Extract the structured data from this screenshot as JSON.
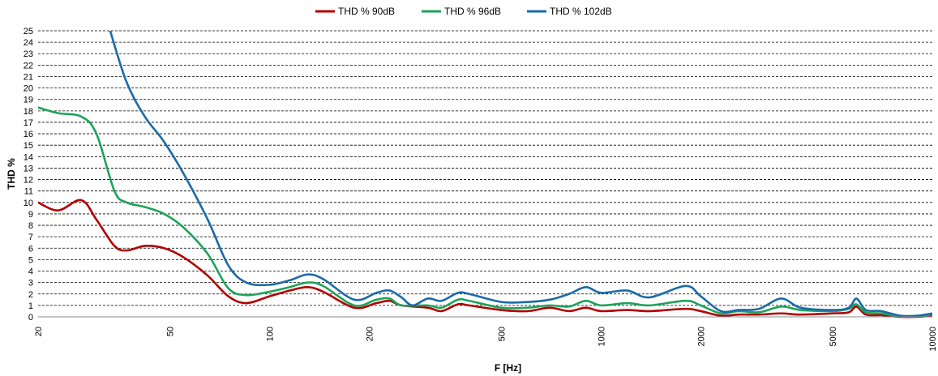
{
  "chart_data": {
    "type": "line",
    "title": "",
    "xlabel": "F [Hz]",
    "ylabel": "THD %",
    "x_scale": "log",
    "xlim": [
      20,
      10000
    ],
    "ylim": [
      0,
      25
    ],
    "x_ticks": [
      "20",
      "50",
      "100",
      "200",
      "500",
      "1000",
      "2000",
      "5000",
      "10000"
    ],
    "y_ticks": [
      "0",
      "1",
      "2",
      "3",
      "4",
      "5",
      "6",
      "7",
      "8",
      "9",
      "10",
      "11",
      "12",
      "13",
      "14",
      "15",
      "16",
      "17",
      "18",
      "19",
      "20",
      "21",
      "22",
      "23",
      "24",
      "25"
    ],
    "grid": "horizontal dashed",
    "legend_position": "top",
    "series": [
      {
        "name": "THD % 90dB",
        "color": "#b30000",
        "points": [
          [
            20,
            10.0
          ],
          [
            23,
            9.3
          ],
          [
            27,
            10.2
          ],
          [
            30,
            8.5
          ],
          [
            34,
            6.2
          ],
          [
            37,
            5.8
          ],
          [
            42,
            6.2
          ],
          [
            48,
            6.0
          ],
          [
            55,
            5.2
          ],
          [
            65,
            3.6
          ],
          [
            75,
            1.8
          ],
          [
            85,
            1.2
          ],
          [
            100,
            1.8
          ],
          [
            115,
            2.3
          ],
          [
            130,
            2.6
          ],
          [
            145,
            2.2
          ],
          [
            180,
            0.8
          ],
          [
            210,
            1.2
          ],
          [
            230,
            1.4
          ],
          [
            250,
            1.0
          ],
          [
            300,
            0.8
          ],
          [
            330,
            0.5
          ],
          [
            370,
            1.1
          ],
          [
            400,
            1.0
          ],
          [
            500,
            0.6
          ],
          [
            600,
            0.5
          ],
          [
            700,
            0.8
          ],
          [
            800,
            0.5
          ],
          [
            900,
            0.8
          ],
          [
            1000,
            0.5
          ],
          [
            1200,
            0.6
          ],
          [
            1400,
            0.5
          ],
          [
            1800,
            0.7
          ],
          [
            2000,
            0.5
          ],
          [
            2300,
            0.1
          ],
          [
            2600,
            0.2
          ],
          [
            3000,
            0.2
          ],
          [
            3500,
            0.3
          ],
          [
            4000,
            0.2
          ],
          [
            5000,
            0.3
          ],
          [
            5600,
            0.4
          ],
          [
            5900,
            0.9
          ],
          [
            6300,
            0.2
          ],
          [
            7000,
            0.15
          ],
          [
            8000,
            0.0
          ],
          [
            9000,
            0.0
          ],
          [
            10000,
            0.1
          ]
        ]
      },
      {
        "name": "THD % 96dB",
        "color": "#1ea35a",
        "points": [
          [
            20,
            18.3
          ],
          [
            23,
            17.8
          ],
          [
            27,
            17.5
          ],
          [
            30,
            16.0
          ],
          [
            34,
            11.0
          ],
          [
            37,
            10.0
          ],
          [
            42,
            9.6
          ],
          [
            48,
            9.0
          ],
          [
            55,
            7.8
          ],
          [
            65,
            5.5
          ],
          [
            75,
            2.5
          ],
          [
            85,
            1.9
          ],
          [
            100,
            2.2
          ],
          [
            115,
            2.6
          ],
          [
            130,
            3.0
          ],
          [
            145,
            2.7
          ],
          [
            180,
            1.0
          ],
          [
            210,
            1.5
          ],
          [
            230,
            1.6
          ],
          [
            250,
            1.0
          ],
          [
            300,
            1.0
          ],
          [
            330,
            0.8
          ],
          [
            370,
            1.5
          ],
          [
            400,
            1.4
          ],
          [
            500,
            0.8
          ],
          [
            600,
            0.8
          ],
          [
            700,
            1.0
          ],
          [
            800,
            0.9
          ],
          [
            900,
            1.4
          ],
          [
            1000,
            1.0
          ],
          [
            1200,
            1.2
          ],
          [
            1400,
            1.0
          ],
          [
            1800,
            1.4
          ],
          [
            2000,
            1.0
          ],
          [
            2300,
            0.3
          ],
          [
            2600,
            0.5
          ],
          [
            3000,
            0.4
          ],
          [
            3500,
            0.9
          ],
          [
            4000,
            0.6
          ],
          [
            5000,
            0.5
          ],
          [
            5600,
            0.7
          ],
          [
            5900,
            1.1
          ],
          [
            6300,
            0.4
          ],
          [
            7000,
            0.3
          ],
          [
            8000,
            0.05
          ],
          [
            9000,
            0.05
          ],
          [
            10000,
            0.2
          ]
        ]
      },
      {
        "name": "THD % 102dB",
        "color": "#1a6aa8",
        "points": [
          [
            33,
            25.0
          ],
          [
            37,
            20.5
          ],
          [
            42,
            17.5
          ],
          [
            48,
            15.3
          ],
          [
            55,
            12.5
          ],
          [
            65,
            8.5
          ],
          [
            75,
            4.5
          ],
          [
            85,
            3.0
          ],
          [
            100,
            2.8
          ],
          [
            115,
            3.2
          ],
          [
            130,
            3.7
          ],
          [
            145,
            3.3
          ],
          [
            180,
            1.5
          ],
          [
            210,
            2.1
          ],
          [
            230,
            2.3
          ],
          [
            250,
            1.7
          ],
          [
            270,
            1.0
          ],
          [
            300,
            1.6
          ],
          [
            330,
            1.4
          ],
          [
            370,
            2.1
          ],
          [
            400,
            2.0
          ],
          [
            500,
            1.3
          ],
          [
            600,
            1.3
          ],
          [
            700,
            1.5
          ],
          [
            800,
            2.0
          ],
          [
            900,
            2.6
          ],
          [
            1000,
            2.1
          ],
          [
            1200,
            2.3
          ],
          [
            1400,
            1.7
          ],
          [
            1800,
            2.7
          ],
          [
            2000,
            1.8
          ],
          [
            2300,
            0.5
          ],
          [
            2600,
            0.6
          ],
          [
            3000,
            0.7
          ],
          [
            3500,
            1.6
          ],
          [
            4000,
            0.8
          ],
          [
            5000,
            0.6
          ],
          [
            5600,
            0.8
          ],
          [
            5900,
            1.6
          ],
          [
            6300,
            0.6
          ],
          [
            7000,
            0.5
          ],
          [
            8000,
            0.1
          ],
          [
            9000,
            0.1
          ],
          [
            10000,
            0.3
          ]
        ]
      }
    ]
  }
}
